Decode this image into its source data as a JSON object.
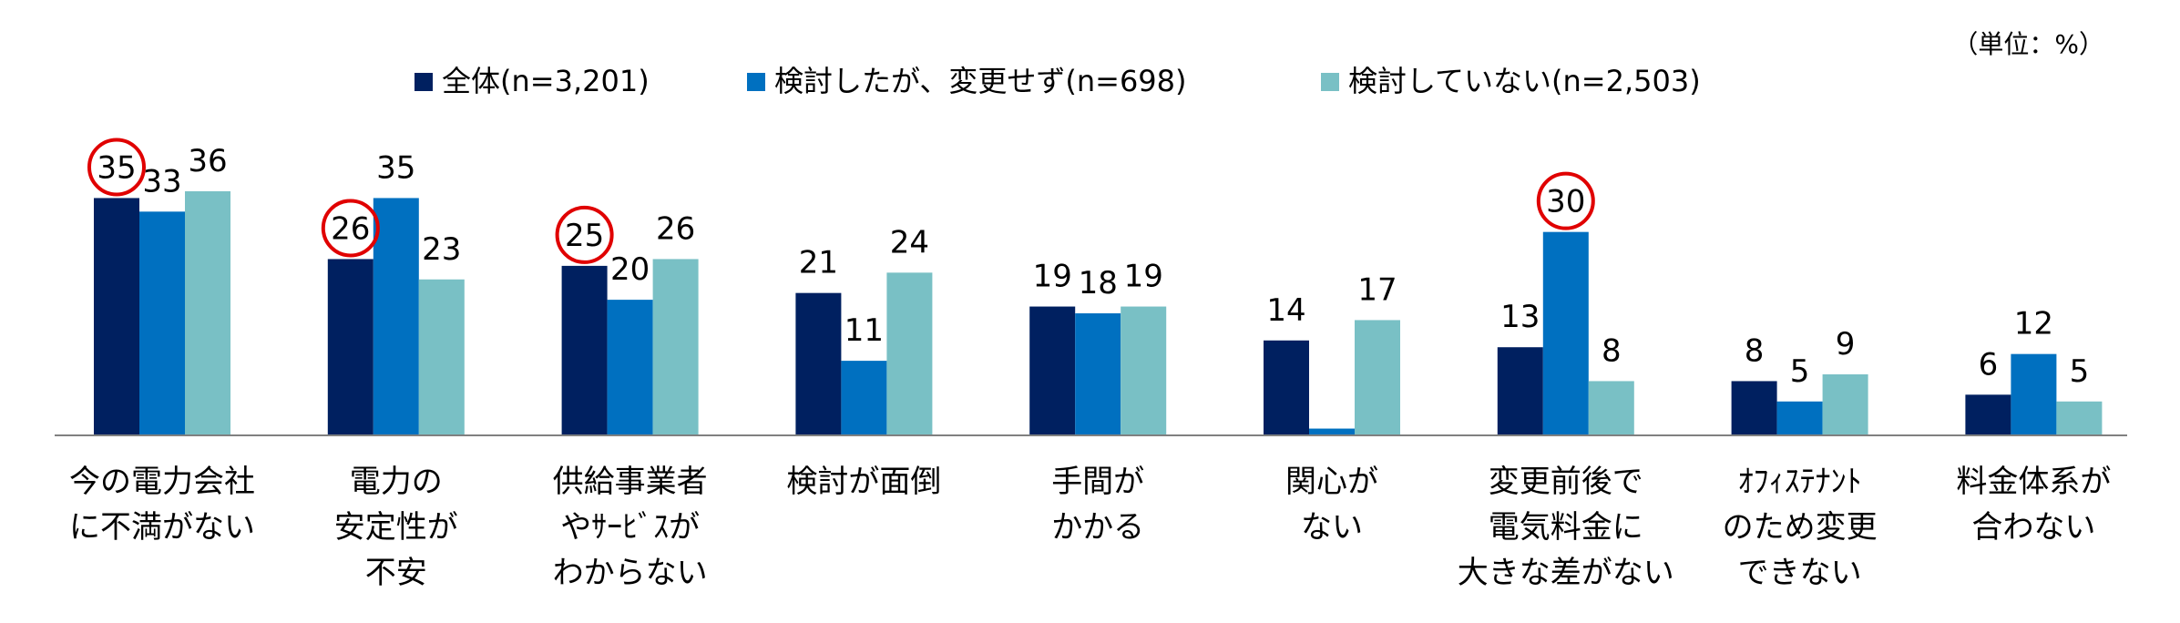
{
  "chart_data": {
    "type": "bar",
    "unit_note": "（単位：%）",
    "categories": [
      [
        "今の電力会社",
        "に不満がない"
      ],
      [
        "電力の",
        "安定性が",
        "不安"
      ],
      [
        "供給事業者",
        "やｻｰﾋﾞｽが",
        "わからない"
      ],
      [
        "検討が面倒"
      ],
      [
        "手間が",
        "かかる"
      ],
      [
        "関心が",
        "ない"
      ],
      [
        "変更前後で",
        "電気料金に",
        "大きな差がない"
      ],
      [
        "ｵﾌｨｽﾃﾅﾝﾄ",
        "のため変更",
        "できない"
      ],
      [
        "料金体系が",
        "合わない"
      ]
    ],
    "series": [
      {
        "name": "全体(n=3,201)",
        "color": "#002060",
        "values": [
          35,
          26,
          25,
          21,
          19,
          14,
          13,
          8,
          6
        ]
      },
      {
        "name": "検討したが、変更せず(n=698)",
        "color": "#0070C0",
        "values": [
          33,
          35,
          20,
          11,
          18,
          1,
          30,
          5,
          12
        ]
      },
      {
        "name": "検討していない(n=2,503)",
        "color": "#79C0C5",
        "values": [
          36,
          23,
          26,
          24,
          19,
          17,
          8,
          9,
          5
        ]
      }
    ],
    "value_labels": [
      [
        "35",
        "33",
        "36"
      ],
      [
        "26",
        "35",
        "23"
      ],
      [
        "25",
        "20",
        "26"
      ],
      [
        "21",
        "11",
        "24"
      ],
      [
        "19",
        "18",
        "19"
      ],
      [
        "14",
        "",
        "17"
      ],
      [
        "13",
        "30",
        "8"
      ],
      [
        "8",
        "5",
        "9"
      ],
      [
        "6",
        "12",
        "5"
      ]
    ],
    "highlighted": [
      {
        "category_index": 0,
        "series_index": 0
      },
      {
        "category_index": 1,
        "series_index": 0
      },
      {
        "category_index": 2,
        "series_index": 0
      },
      {
        "category_index": 6,
        "series_index": 1
      }
    ],
    "highlight_color": "#E00000",
    "ylim": [
      0,
      40
    ],
    "grid": false,
    "legend_position": "top-center"
  }
}
